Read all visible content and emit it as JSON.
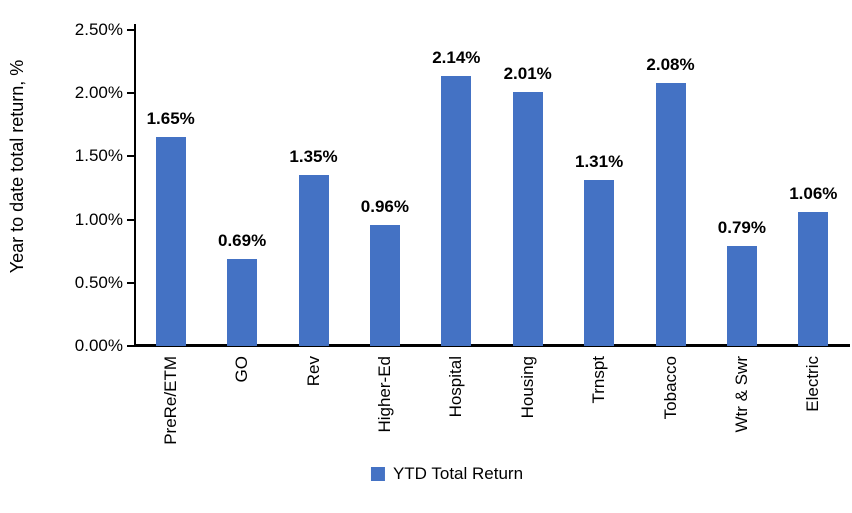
{
  "chart_data": {
    "type": "bar",
    "title": "",
    "xlabel": "",
    "ylabel": "Year to date total return, %",
    "legend_label": "YTD Total Return",
    "legend_position": "bottom-center",
    "categories": [
      "PreRe/ETM",
      "GO",
      "Rev",
      "Higher-Ed",
      "Hospital",
      "Housing",
      "Trnspt",
      "Tobacco",
      "Wtr & Swr",
      "Electric"
    ],
    "values": [
      1.65,
      0.69,
      1.35,
      0.96,
      2.14,
      2.01,
      1.31,
      2.08,
      0.79,
      1.06
    ],
    "value_labels": [
      "1.65%",
      "0.69%",
      "1.35%",
      "0.96%",
      "2.14%",
      "2.01%",
      "1.31%",
      "2.08%",
      "0.79%",
      "1.06%"
    ],
    "ylim": [
      0,
      2.5
    ],
    "ytick_step": 0.5,
    "ytick_labels": [
      "0.00%",
      "0.50%",
      "1.00%",
      "1.50%",
      "2.00%",
      "2.50%"
    ],
    "grid": false,
    "colors": {
      "bar": "#4472C4",
      "axis": "#000000",
      "text": "#000000"
    }
  }
}
